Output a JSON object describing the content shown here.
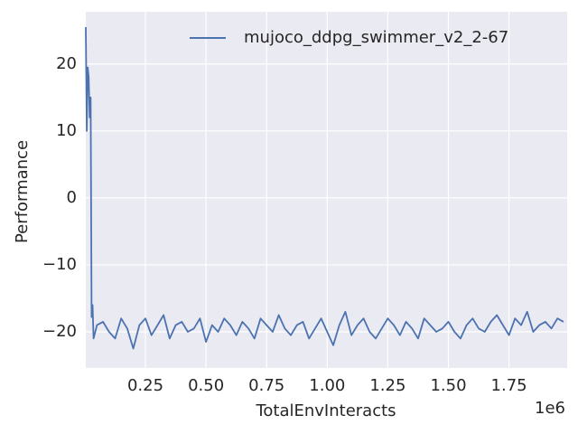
{
  "chart_data": {
    "type": "line",
    "xlabel": "TotalEnvInteracts",
    "ylabel": "Performance",
    "x_offset_label": "1e6",
    "x": [
      4000,
      8000,
      12000,
      16000,
      20000,
      24000,
      28000,
      32000,
      36000,
      50000,
      75000,
      100000,
      125000,
      150000,
      175000,
      200000,
      225000,
      250000,
      275000,
      300000,
      325000,
      350000,
      375000,
      400000,
      425000,
      450000,
      475000,
      500000,
      525000,
      550000,
      575000,
      600000,
      625000,
      650000,
      675000,
      700000,
      725000,
      750000,
      775000,
      800000,
      825000,
      850000,
      875000,
      900000,
      925000,
      950000,
      975000,
      1000000,
      1025000,
      1050000,
      1075000,
      1100000,
      1125000,
      1150000,
      1175000,
      1200000,
      1225000,
      1250000,
      1275000,
      1300000,
      1325000,
      1350000,
      1375000,
      1400000,
      1425000,
      1450000,
      1475000,
      1500000,
      1525000,
      1550000,
      1575000,
      1600000,
      1625000,
      1650000,
      1675000,
      1700000,
      1725000,
      1750000,
      1775000,
      1800000,
      1825000,
      1850000,
      1875000,
      1900000,
      1925000,
      1950000,
      1975000
    ],
    "series": [
      {
        "name": "mujoco_ddpg_swimmer_v2_2-67",
        "color": "#4c72b0",
        "values": [
          25.5,
          10,
          19.5,
          18,
          12,
          15,
          -17.8,
          -16,
          -21,
          -19,
          -18.5,
          -20,
          -21,
          -18,
          -19.5,
          -22.5,
          -19,
          -18,
          -20.5,
          -19,
          -17.5,
          -21,
          -19,
          -18.5,
          -20,
          -19.5,
          -18,
          -21.5,
          -19,
          -20,
          -18,
          -19,
          -20.5,
          -18.5,
          -19.5,
          -21,
          -18,
          -19,
          -20,
          -17.5,
          -19.5,
          -20.5,
          -19,
          -18.5,
          -21,
          -19.5,
          -18,
          -20,
          -22,
          -19,
          -17,
          -20.5,
          -19,
          -18,
          -20,
          -21,
          -19.5,
          -18,
          -19,
          -20.5,
          -18.5,
          -19.5,
          -21,
          -18,
          -19,
          -20,
          -19.5,
          -18.5,
          -20,
          -21,
          -19,
          -18,
          -19.5,
          -20,
          -18.5,
          -17.5,
          -19,
          -20.5,
          -18,
          -19,
          -17,
          -20,
          -19,
          -18.5,
          -19.5,
          -18,
          -18.5
        ]
      }
    ],
    "xlim": [
      4000,
      1990000
    ],
    "xticks": [
      {
        "value": 250000,
        "label": "0.25"
      },
      {
        "value": 500000,
        "label": "0.50"
      },
      {
        "value": 750000,
        "label": "0.75"
      },
      {
        "value": 1000000,
        "label": "1.00"
      },
      {
        "value": 1250000,
        "label": "1.25"
      },
      {
        "value": 1500000,
        "label": "1.50"
      },
      {
        "value": 1750000,
        "label": "1.75"
      }
    ],
    "ylim": [
      -25.4,
      27.8
    ],
    "yticks": [
      {
        "value": -20,
        "label": "−20"
      },
      {
        "value": -10,
        "label": "−10"
      },
      0,
      10,
      20
    ],
    "grid": true,
    "legend": "upper right",
    "background": "#eaeaf2"
  }
}
